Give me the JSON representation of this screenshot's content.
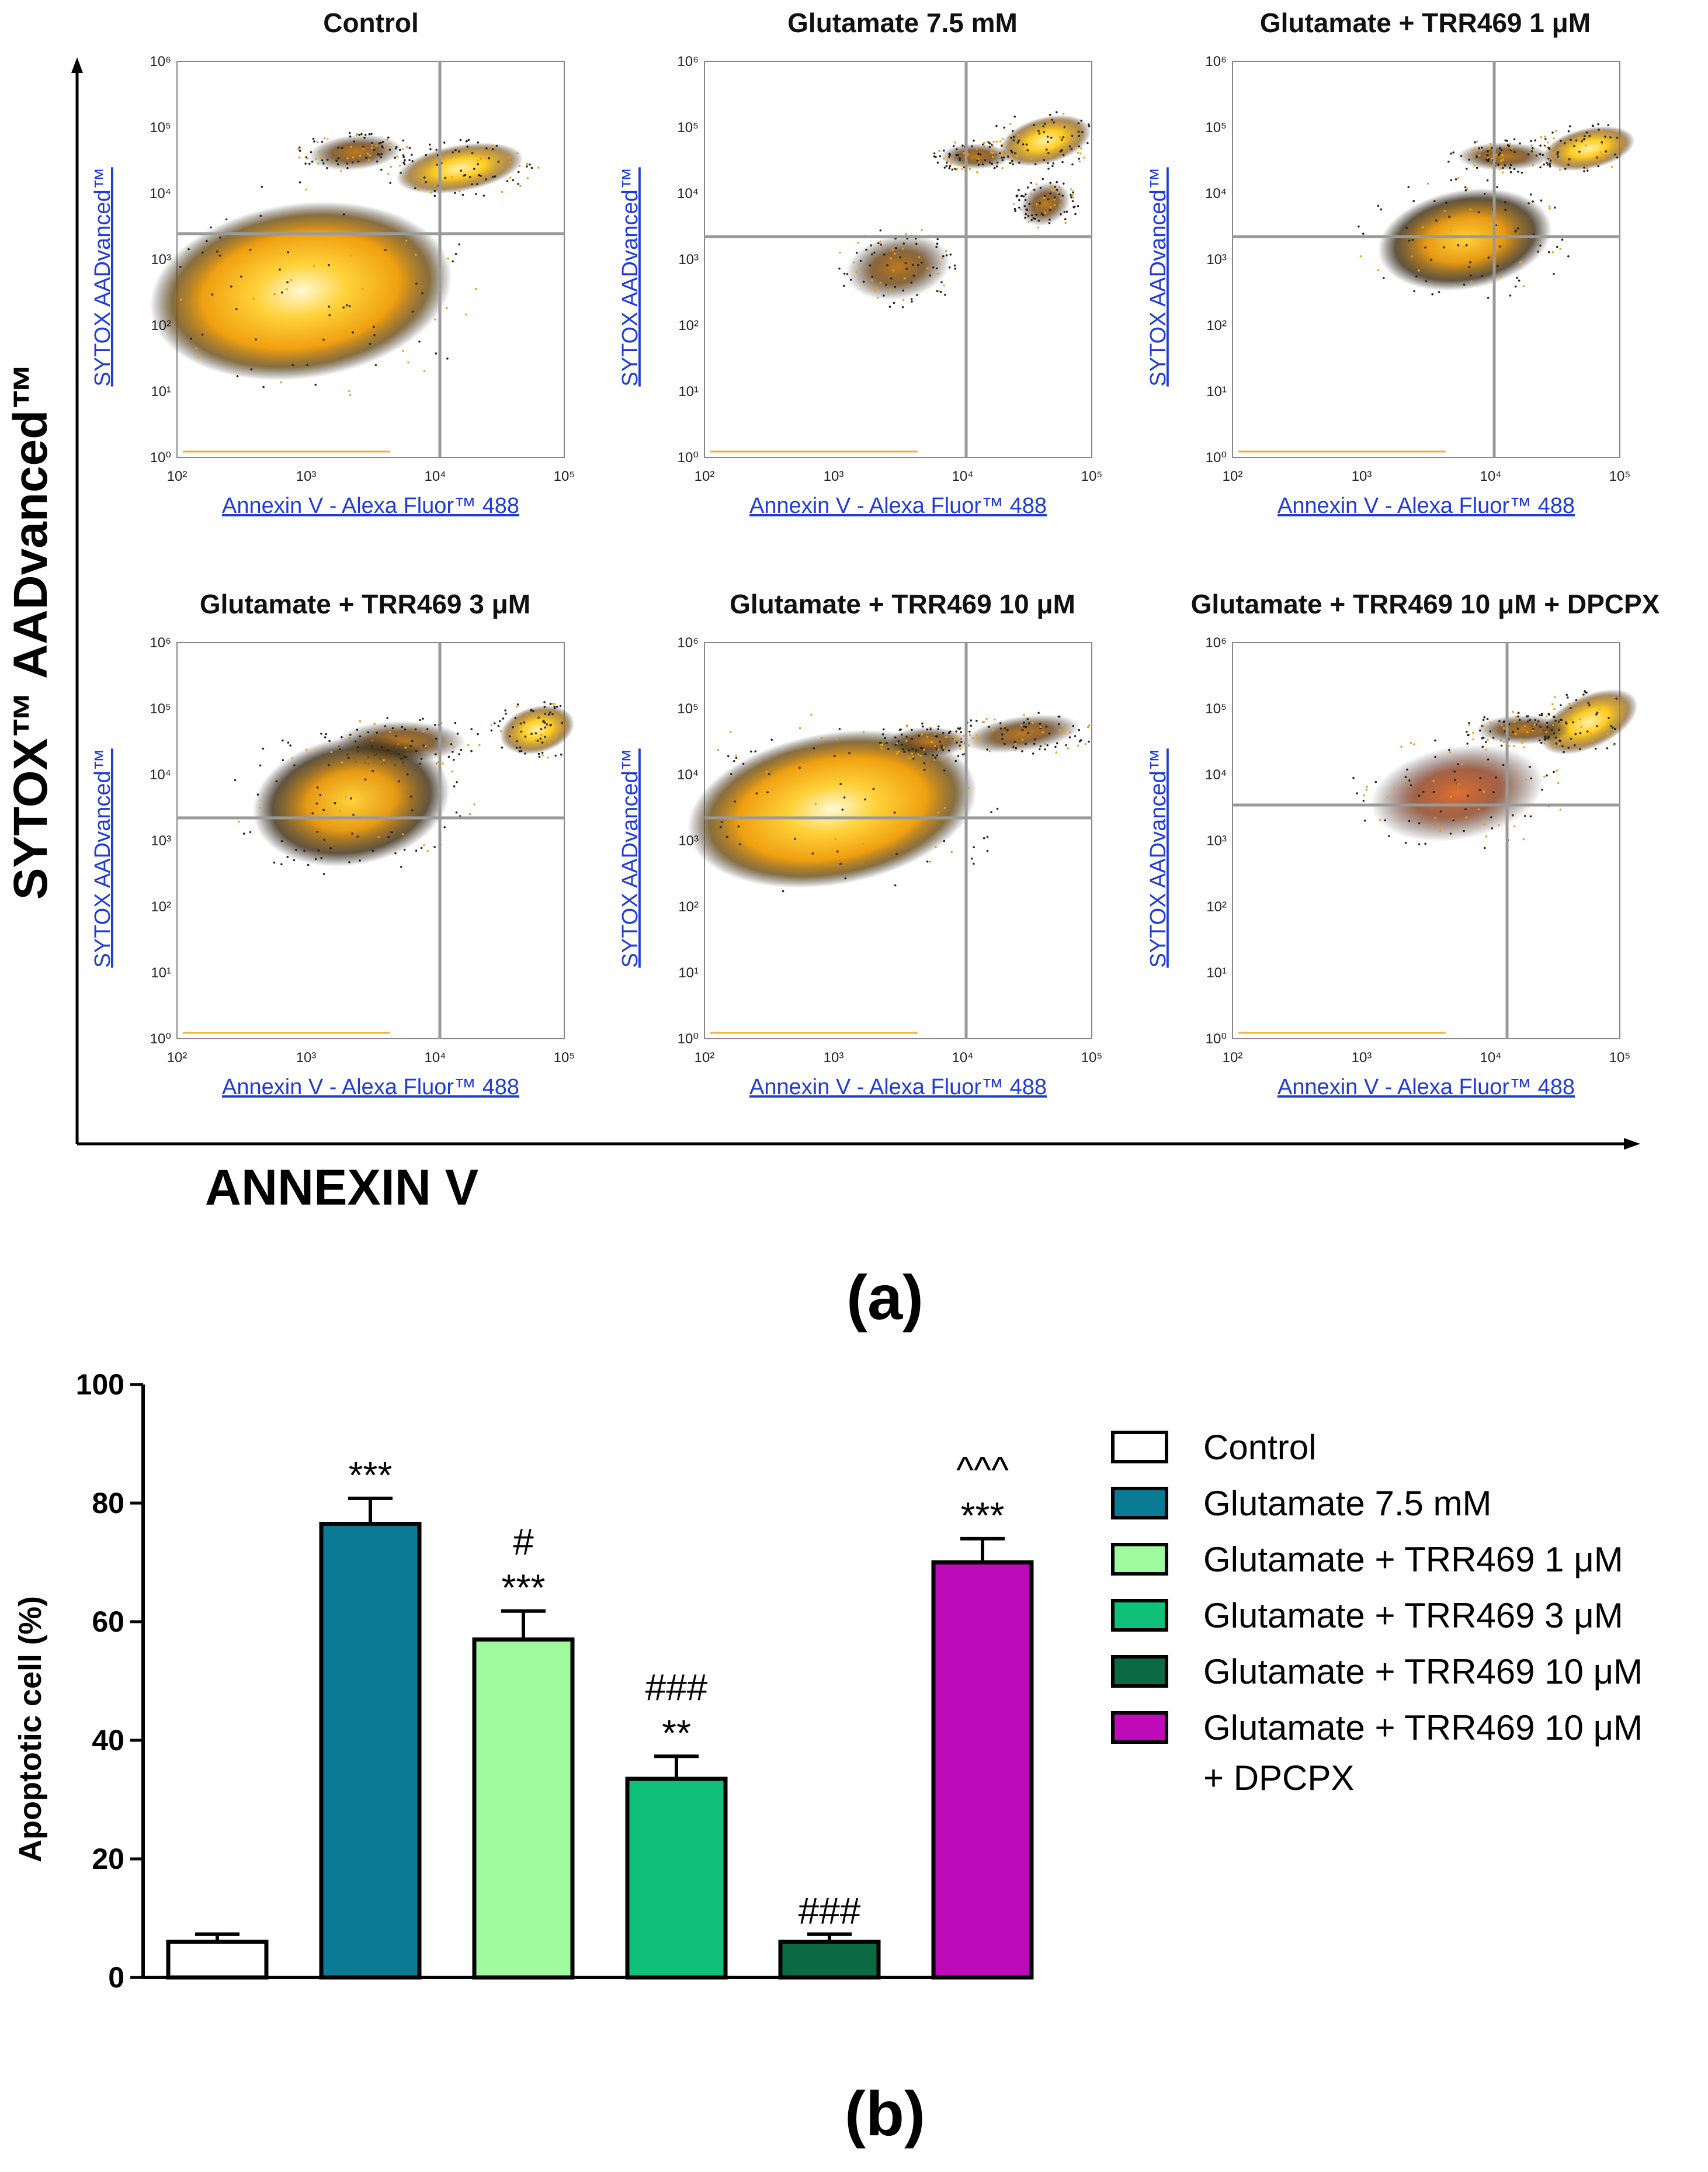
{
  "panel_a": {
    "label": "(a)",
    "y_axis_label": "SYTOX™ AADvanced™",
    "x_axis_label": "ANNEXIN V",
    "scatter_panels": [
      {
        "title": "Control",
        "x_axis": "Annexin V - Alexa Fluor™ 488",
        "y_axis": "SYTOX AADvanced™"
      },
      {
        "title": "Glutamate 7.5 mM",
        "x_axis": "Annexin V - Alexa Fluor™ 488",
        "y_axis": "SYTOX AADvanced™"
      },
      {
        "title": "Glutamate + TRR469 1 μM",
        "x_axis": "Annexin V - Alexa Fluor™ 488",
        "y_axis": "SYTOX AADvanced™"
      },
      {
        "title": "Glutamate + TRR469 3 μM",
        "x_axis": "Annexin V - Alexa Fluor™ 488",
        "y_axis": "SYTOX AADvanced™"
      },
      {
        "title": "Glutamate + TRR469 10 μM",
        "x_axis": "Annexin V - Alexa Fluor™ 488",
        "y_axis": "SYTOX AADvanced™"
      },
      {
        "title": "Glutamate + TRR469 10 μM + DPCPX",
        "x_axis": "Annexin V - Alexa Fluor™ 488",
        "y_axis": "SYTOX AADvanced™"
      }
    ],
    "x_ticks": [
      "10²",
      "10³",
      "10⁴",
      "10⁵"
    ],
    "y_ticks": [
      "10⁶",
      "10⁵",
      "10⁴",
      "10³",
      "10²",
      "10¹",
      "10⁰"
    ]
  },
  "panel_b": {
    "label": "(b)"
  },
  "chart_data": {
    "type": "bar",
    "title": "",
    "xlabel": "",
    "ylabel": "Apoptotic cell (%)",
    "ylim": [
      0,
      100
    ],
    "yticks": [
      "0",
      "20",
      "40",
      "60",
      "80",
      "100"
    ],
    "categories": [
      "Control",
      "Glutamate 7.5 mM",
      "Glutamate + TRR469 1 μM",
      "Glutamate + TRR469 3 μM",
      "Glutamate + TRR469 10 μM",
      "Glutamate + TRR469 10 μM + DPCPX"
    ],
    "values": [
      6,
      76.5,
      57,
      33.5,
      6,
      70
    ],
    "errors": [
      1.3,
      4.3,
      4.8,
      3.8,
      1.3,
      4.0
    ],
    "colors": [
      "#ffffff",
      "#0b7a94",
      "#9efa9c",
      "#0fc07a",
      "#0b6a44",
      "#be0ab8"
    ],
    "annotations": [
      [],
      [
        "***"
      ],
      [
        "#",
        "***"
      ],
      [
        "###",
        "**"
      ],
      [
        "###"
      ],
      [
        "^^^",
        "***"
      ]
    ],
    "legend": [
      [
        "Control"
      ],
      [
        "Glutamate 7.5 mM"
      ],
      [
        "Glutamate + TRR469 1 μM"
      ],
      [
        "Glutamate + TRR469 3 μM"
      ],
      [
        "Glutamate + TRR469 10 μM"
      ],
      [
        "Glutamate + TRR469 10 μM",
        "+ DPCPX"
      ]
    ]
  }
}
